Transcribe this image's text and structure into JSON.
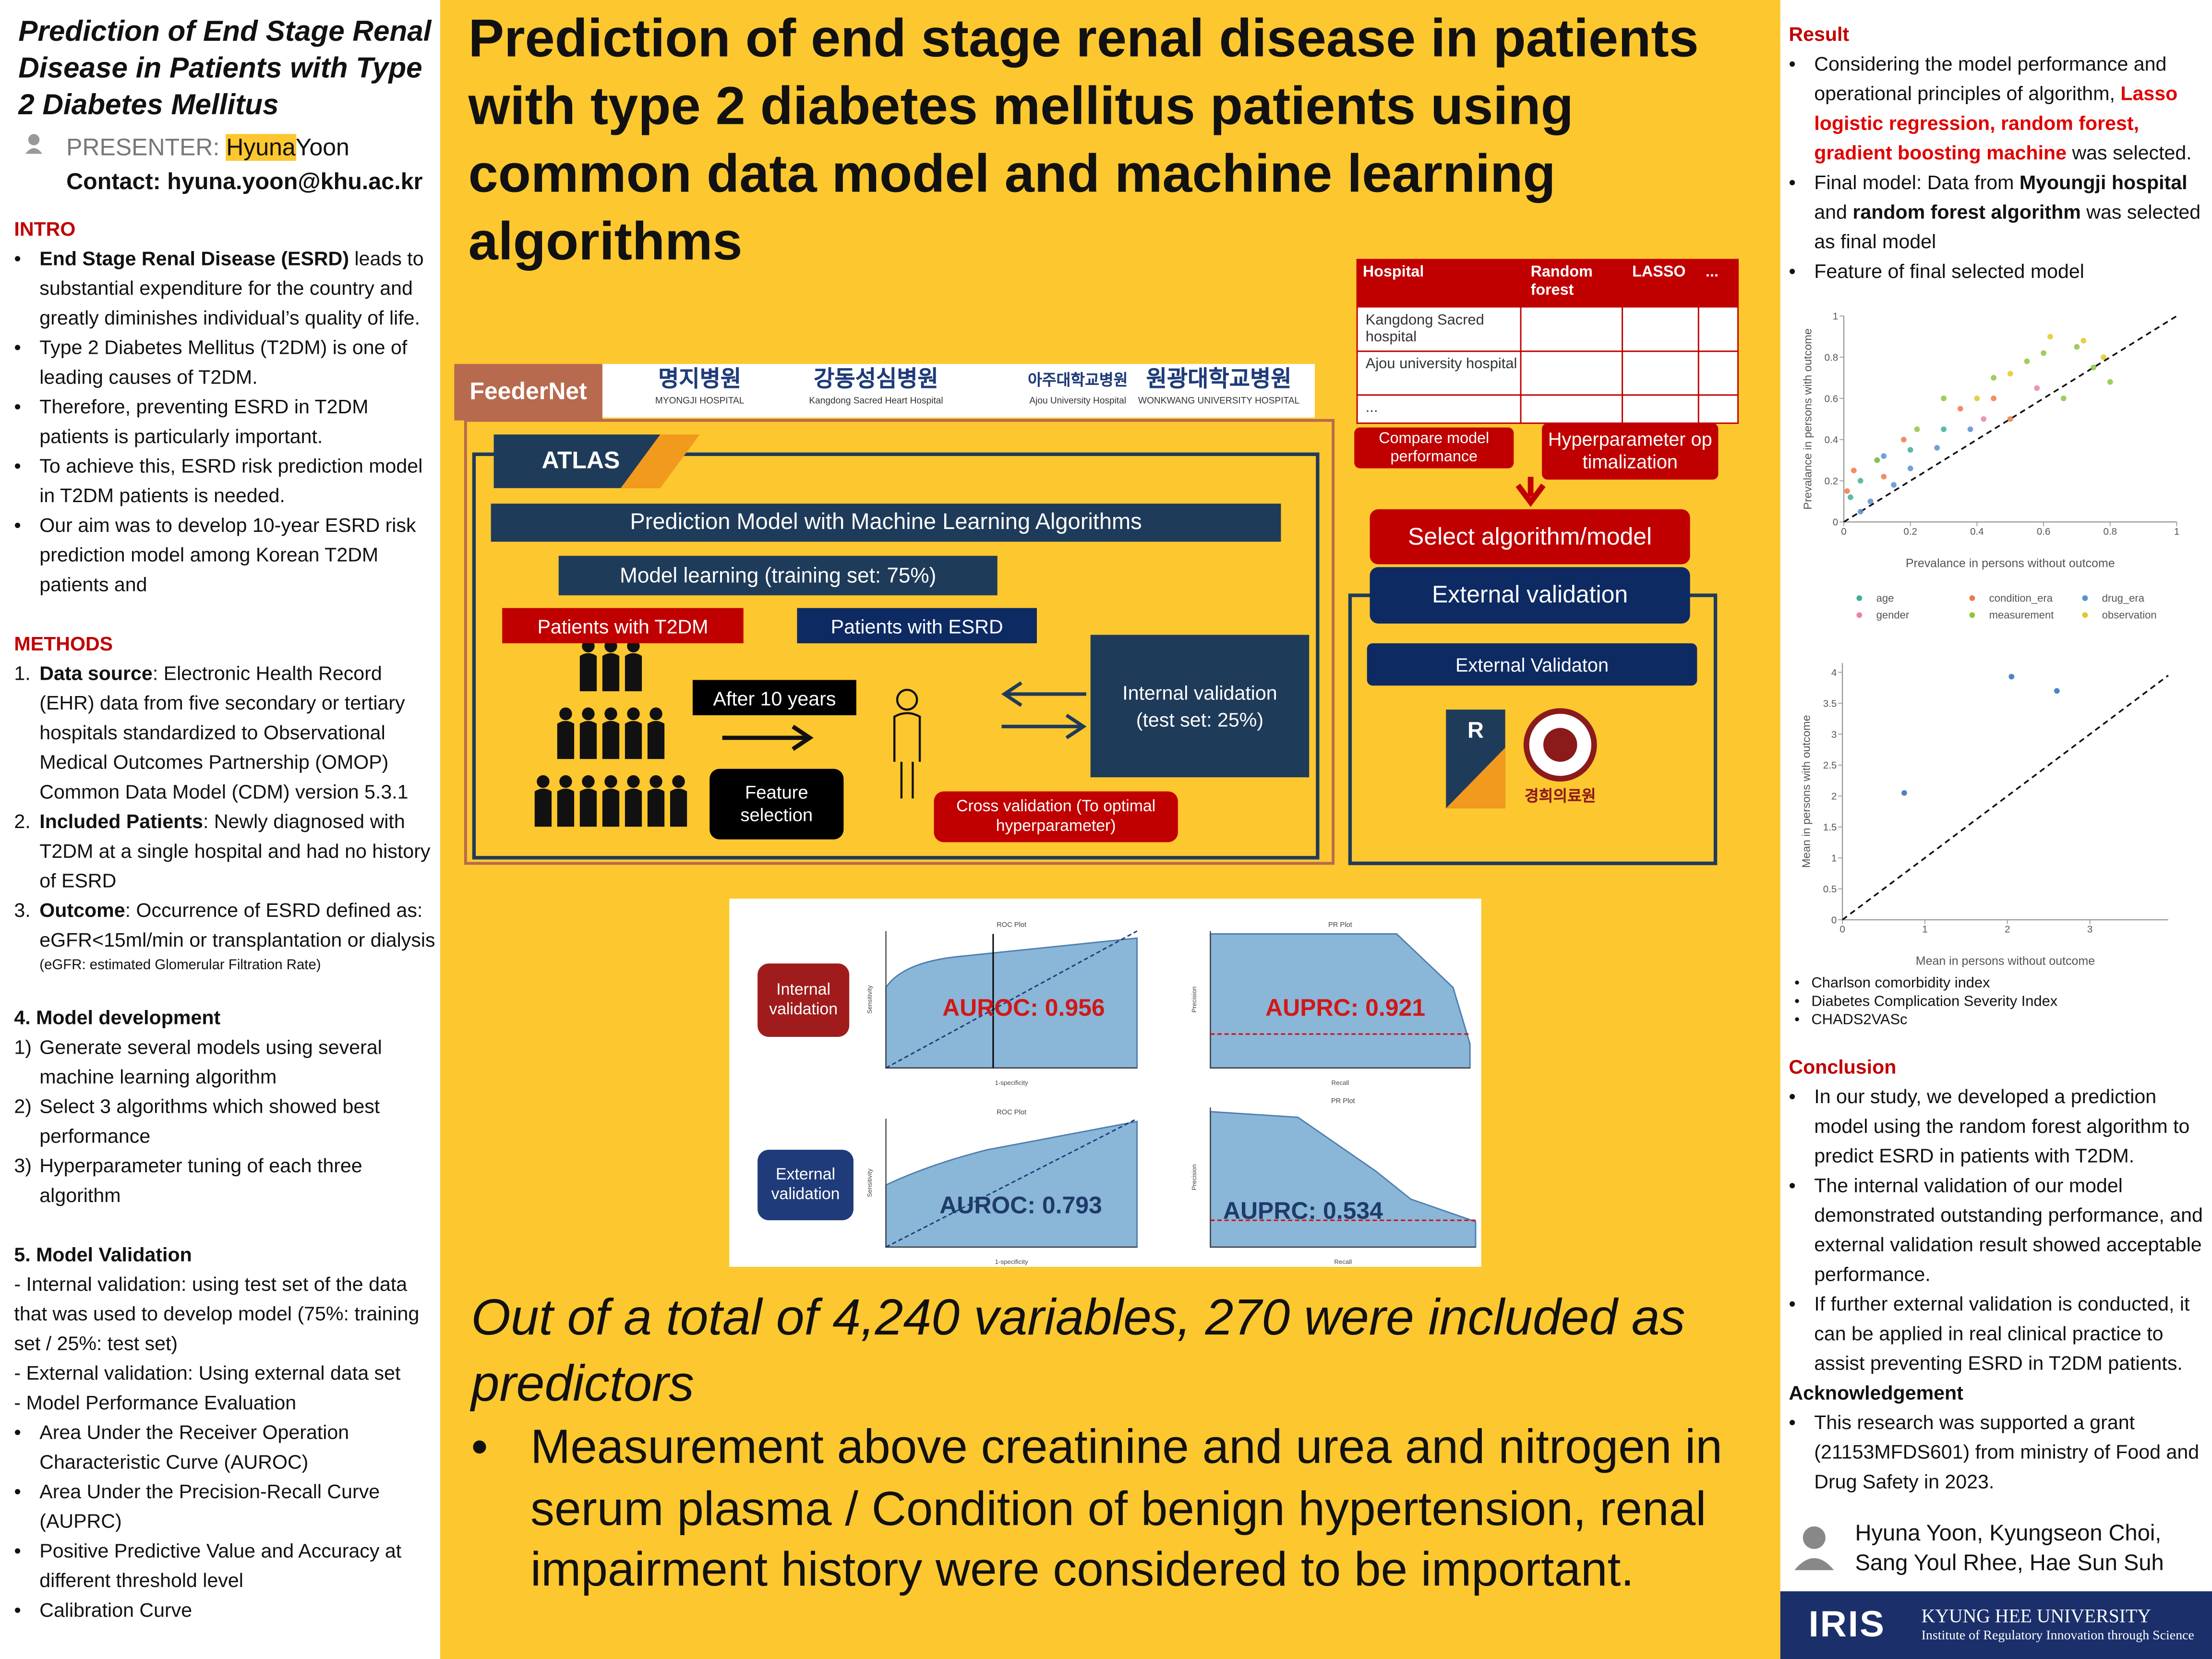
{
  "left": {
    "title": "Prediction of End Stage Renal Disease in Patients with Type 2 Diabetes Mellitus",
    "presenter_label": "PRESENTER:",
    "presenter_highlight": "Hyuna",
    "presenter_rest": "Yoon",
    "contact": "Contact: hyuna.yoon@khu.ac.kr",
    "intro_heading": "INTRO",
    "intro": [
      {
        "marker": "•",
        "segs": [
          {
            "b": "End Stage Renal Disease (ESRD)"
          },
          " leads to substantial expenditure for the country and greatly diminishes individual’s quality of life."
        ]
      },
      {
        "marker": "•",
        "segs": [
          "Type 2 Diabetes Mellitus (T2DM) is one of leading causes of T2DM."
        ]
      },
      {
        "marker": "•",
        "segs": [
          "Therefore, preventing ESRD in T2DM patients is particularly important."
        ]
      },
      {
        "marker": "•",
        "segs": [
          "To achieve this, ESRD risk prediction model in T2DM patients is needed."
        ]
      },
      {
        "marker": "•",
        "segs": [
          "Our aim was to develop 10-year ESRD risk prediction model among Korean T2DM patients and"
        ]
      }
    ],
    "methods_heading": "METHODS",
    "methods": [
      {
        "marker": "1.",
        "segs": [
          {
            "b": "Data source"
          },
          ": Electronic Health Record (EHR) data from five secondary or tertiary hospitals standardized to Observational Medical Outcomes Partnership (OMOP) Common Data Model (CDM) version 5.3.1"
        ]
      },
      {
        "marker": "2.",
        "segs": [
          {
            "b": "Included Patients"
          },
          ": Newly diagnosed with T2DM at a single hospital and had no history of ESRD"
        ]
      },
      {
        "marker": "3.",
        "segs": [
          {
            "b": "Outcome"
          },
          ": Occurrence of ESRD defined as: eGFR<15ml/min or transplantation or dialysis"
        ]
      }
    ],
    "note": "(eGFR: estimated Glomerular Filtration Rate)",
    "dev_heading": "4. Model development",
    "dev": [
      {
        "marker": "1)",
        "segs": [
          "Generate several models using several machine learning algorithm"
        ]
      },
      {
        "marker": "2)",
        "segs": [
          "Select 3 algorithms which showed best performance"
        ]
      },
      {
        "marker": "3)",
        "segs": [
          "Hyperparameter tuning of each three algorithm"
        ]
      }
    ],
    "val_heading": "5. Model Validation",
    "val": [
      {
        "segs": [
          "- Internal validation: using test set of the data that was used to develop model (75%: training set / 25%: test set)"
        ]
      },
      {
        "segs": [
          "- External validation: Using external data set"
        ]
      },
      {
        "segs": [
          "- Model Performance Evaluation"
        ]
      },
      {
        "marker": "•",
        "segs": [
          "Area Under the Receiver Operation Characteristic Curve (AUROC)"
        ]
      },
      {
        "marker": "•",
        "segs": [
          "Area Under the Precision-Recall Curve (AUPRC)"
        ]
      },
      {
        "marker": "•",
        "segs": [
          "Positive Predictive Value and Accuracy at different threshold level"
        ]
      },
      {
        "marker": "•",
        "segs": [
          "Calibration Curve"
        ]
      }
    ]
  },
  "title": "Prediction of end stage renal disease in patients with type 2 diabetes mellitus patients using common data model and machine learning algorithms",
  "diagram": {
    "feedernet": "FeederNet",
    "hospitals": [
      "명지병원",
      "MYONGJI HOSPITAL",
      "강동성심병원",
      "Kangdong Sacred Heart Hospital",
      "아주대학교병원",
      "Ajou University Hospital",
      "원광대학교병원",
      "WONKWANG UNIVERSITY HOSPITAL"
    ],
    "atlas": "ATLAS",
    "prediction": "Prediction Model with Machine Learning Algorithms",
    "learning": "Model learning (training set: 75%)",
    "patients_t2dm": "Patients with T2DM",
    "patients_esrd": "Patients with ESRD",
    "after": "After 10 years",
    "feature": "Feature selection",
    "internal": "Internal validation (test set: 25%)",
    "cross": "Cross validation (To optimal hyperparameter)",
    "table": {
      "header": [
        "Hospital",
        "Random forest",
        "LASSO",
        "..."
      ],
      "rows": [
        "Kangdong Sacred hospital",
        "Ajou university hospital",
        "..."
      ]
    },
    "compare": "Compare model performance",
    "hyper": "Hyperparameter optimalization",
    "select": "Select algorithm/model",
    "external": "External validation",
    "external2": "External Validaton",
    "r": "R",
    "khmc": "경희의료원"
  },
  "curves": {
    "internal_label": "Internal validation",
    "external_label": "External validation",
    "roc_title": "ROC Plot",
    "pr_title": "PR Plot",
    "specificity": "1-specificity",
    "sensitivity": "Sensitivity",
    "precision": "Precision",
    "recall": "Recall",
    "auroc_int": "AUROC: 0.956",
    "auprc_int": "AUPRC: 0.921",
    "auroc_ext": "AUROC: 0.793",
    "auprc_ext": "AUPRC: 0.534"
  },
  "findings": {
    "headline": "Out of a total of 4,240 variables, 270 were included as predictors",
    "marker": "•",
    "text": "Measurement above creatinine and urea and nitrogen in serum plasma / Condition of benign hypertension, renal impairment history were considered to be important."
  },
  "right": {
    "result_heading": "Result",
    "result": [
      {
        "marker": "•",
        "segs": [
          "Considering the model performance and operational principles of algorithm, ",
          {
            "r": "Lasso logistic regression, random forest, gradient boosting machine"
          },
          " was selected."
        ]
      },
      {
        "marker": "•",
        "segs": [
          "Final model: Data from ",
          {
            "b": "Myoungji hospital"
          },
          " and ",
          {
            "b": "random forest algorithm"
          },
          " was selected as final model"
        ]
      },
      {
        "marker": "•",
        "segs": [
          "Feature of final selected model"
        ]
      }
    ],
    "features": [
      {
        "marker": "•",
        "segs": [
          "Charlson comorbidity index"
        ]
      },
      {
        "marker": "•",
        "segs": [
          "Diabetes Complication Severity Index"
        ]
      },
      {
        "marker": "•",
        "segs": [
          "CHADS2VASc"
        ]
      }
    ],
    "conclusion_heading": "Conclusion",
    "conclusion": [
      {
        "marker": "•",
        "segs": [
          "In our study, we developed a prediction model using the random forest algorithm to predict ESRD in patients with T2DM."
        ]
      },
      {
        "marker": "•",
        "segs": [
          "The internal validation of our model demonstrated outstanding performance, and external validation result showed acceptable performance."
        ]
      },
      {
        "marker": "•",
        "segs": [
          "If further external validation is conducted, it can be applied in real clinical practice to assist preventing ESRD in T2DM patients."
        ]
      }
    ],
    "ack_heading": "Acknowledgement",
    "ack": [
      {
        "marker": "•",
        "segs": [
          "This research was supported a grant (21153MFDS601) from ministry of Food and Drug Safety in 2023."
        ]
      }
    ],
    "authors": "Hyuna Yoon, Kyungseon Choi, Sang Youl Rhee, Hae Sun Suh",
    "banner": {
      "logo": "IRIS",
      "university": "KYUNG HEE UNIVERSITY",
      "institute": "Institute of Regulatory Innovation through Science"
    }
  },
  "plots": [
    {
      "type": "scatter",
      "xlabel": "Prevalance in persons without outcome",
      "ylabel": "Prevalance in persons with outcome",
      "xlim": [
        0,
        1
      ],
      "ylim": [
        0,
        1
      ],
      "xticks": [
        0,
        0.2,
        0.4,
        0.6,
        0.8,
        1
      ],
      "yticks": [
        0,
        0.2,
        0.4,
        0.6,
        0.8,
        1
      ],
      "series": [
        {
          "name": "age",
          "color": "#3fae9a",
          "x": [
            0.02,
            0.05,
            0.1,
            0.2,
            0.3
          ],
          "y": [
            0.12,
            0.2,
            0.3,
            0.35,
            0.45
          ]
        },
        {
          "name": "condition_era",
          "color": "#f2784b",
          "x": [
            0.01,
            0.03,
            0.12,
            0.18,
            0.35,
            0.45,
            0.5
          ],
          "y": [
            0.15,
            0.25,
            0.22,
            0.4,
            0.55,
            0.6,
            0.5
          ]
        },
        {
          "name": "drug_era",
          "color": "#5b8fd6",
          "x": [
            0.05,
            0.08,
            0.15,
            0.2,
            0.28,
            0.38,
            0.12
          ],
          "y": [
            0.05,
            0.1,
            0.18,
            0.26,
            0.36,
            0.45,
            0.32
          ]
        },
        {
          "name": "gender",
          "color": "#e884a7",
          "x": [
            0.42,
            0.58
          ],
          "y": [
            0.5,
            0.65
          ]
        },
        {
          "name": "measurement",
          "color": "#8cc63f",
          "x": [
            0.1,
            0.22,
            0.3,
            0.45,
            0.55,
            0.6,
            0.7,
            0.75,
            0.66,
            0.8
          ],
          "y": [
            0.3,
            0.45,
            0.6,
            0.7,
            0.78,
            0.82,
            0.85,
            0.75,
            0.6,
            0.68
          ]
        },
        {
          "name": "observation",
          "color": "#e0c82a",
          "x": [
            0.4,
            0.5,
            0.62,
            0.72,
            0.78
          ],
          "y": [
            0.6,
            0.72,
            0.9,
            0.88,
            0.8
          ]
        }
      ]
    },
    {
      "type": "scatter",
      "xlabel": "Mean in persons without outcome",
      "ylabel": "Mean in persons with outcome",
      "xlim": [
        0,
        3.95
      ],
      "ylim": [
        0,
        4.15
      ],
      "xticks": [
        0,
        1,
        2,
        3
      ],
      "yticks": [
        0,
        0.5,
        1,
        1.5,
        2,
        2.5,
        3,
        3.5,
        4
      ],
      "series": [
        {
          "color": "#2f6fb8",
          "x": [
            0.75,
            2.05,
            2.6
          ],
          "y": [
            2.05,
            3.93,
            3.7
          ]
        }
      ]
    }
  ]
}
